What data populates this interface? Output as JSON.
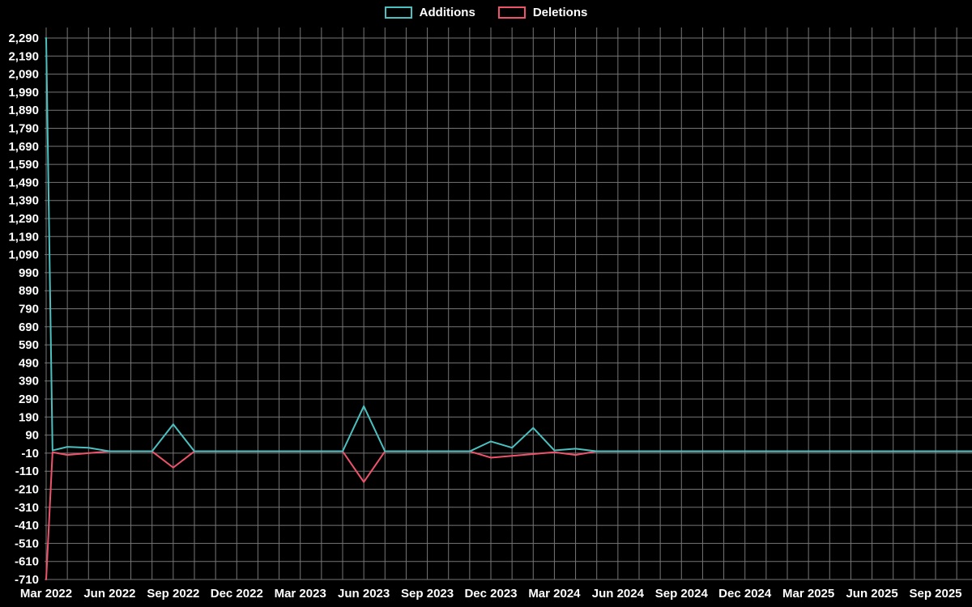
{
  "legend": {
    "items": [
      {
        "label": "Additions"
      },
      {
        "label": "Deletions"
      }
    ]
  },
  "chart_data": {
    "type": "line",
    "title": "",
    "xlabel": "",
    "ylabel": "",
    "grid": true,
    "legend_position": "top-center",
    "background": "#000000",
    "grid_color": "#767676",
    "text_color": "#ffffff",
    "x_unit": "months since Mar 2022",
    "x": [
      0,
      0.3,
      1,
      2,
      3,
      4,
      5,
      6,
      7,
      8,
      9,
      10,
      11,
      12,
      13,
      14,
      15,
      16,
      17,
      18,
      19,
      20,
      21,
      22,
      23,
      24,
      25,
      26,
      27,
      28,
      29,
      30,
      31,
      32,
      33,
      34,
      35,
      36,
      37,
      38,
      39,
      40,
      41,
      42,
      43.8
    ],
    "series": [
      {
        "name": "Additions",
        "color": "#4bc0c0",
        "values": [
          2290,
          5,
          25,
          20,
          0,
          0,
          0,
          150,
          0,
          0,
          0,
          0,
          0,
          0,
          0,
          0,
          250,
          0,
          0,
          0,
          0,
          0,
          55,
          20,
          130,
          5,
          15,
          0,
          0,
          0,
          0,
          0,
          0,
          0,
          0,
          0,
          0,
          0,
          0,
          0,
          0,
          0,
          0,
          0,
          0
        ]
      },
      {
        "name": "Deletions",
        "color": "#ef536b",
        "values": [
          -710,
          -5,
          -20,
          -10,
          0,
          0,
          0,
          -90,
          0,
          0,
          0,
          0,
          0,
          0,
          0,
          0,
          -170,
          0,
          0,
          0,
          0,
          0,
          -35,
          -25,
          -15,
          -5,
          -20,
          0,
          0,
          0,
          0,
          0,
          0,
          0,
          0,
          0,
          0,
          0,
          0,
          0,
          0,
          0,
          0,
          0,
          0
        ]
      }
    ],
    "ylim": [
      -710,
      2290
    ],
    "y_tick_step": 100,
    "y_ticks": [
      -710,
      -610,
      -510,
      -410,
      -310,
      -210,
      -110,
      -10,
      90,
      190,
      290,
      390,
      490,
      590,
      690,
      790,
      890,
      990,
      1090,
      1190,
      1290,
      1390,
      1490,
      1590,
      1690,
      1790,
      1890,
      1990,
      2090,
      2190,
      2290
    ],
    "x_tick_months": [
      0,
      3,
      6,
      9,
      12,
      15,
      18,
      21,
      24,
      27,
      30,
      33,
      36,
      39,
      42
    ],
    "x_tick_labels": [
      "Mar 2022",
      "Jun 2022",
      "Sep 2022",
      "Dec 2022",
      "Mar 2023",
      "Jun 2023",
      "Sep 2023",
      "Dec 2023",
      "Mar 2024",
      "Jun 2024",
      "Sep 2024",
      "Dec 2024",
      "Mar 2025",
      "Jun 2025",
      "Sep 2025"
    ]
  }
}
